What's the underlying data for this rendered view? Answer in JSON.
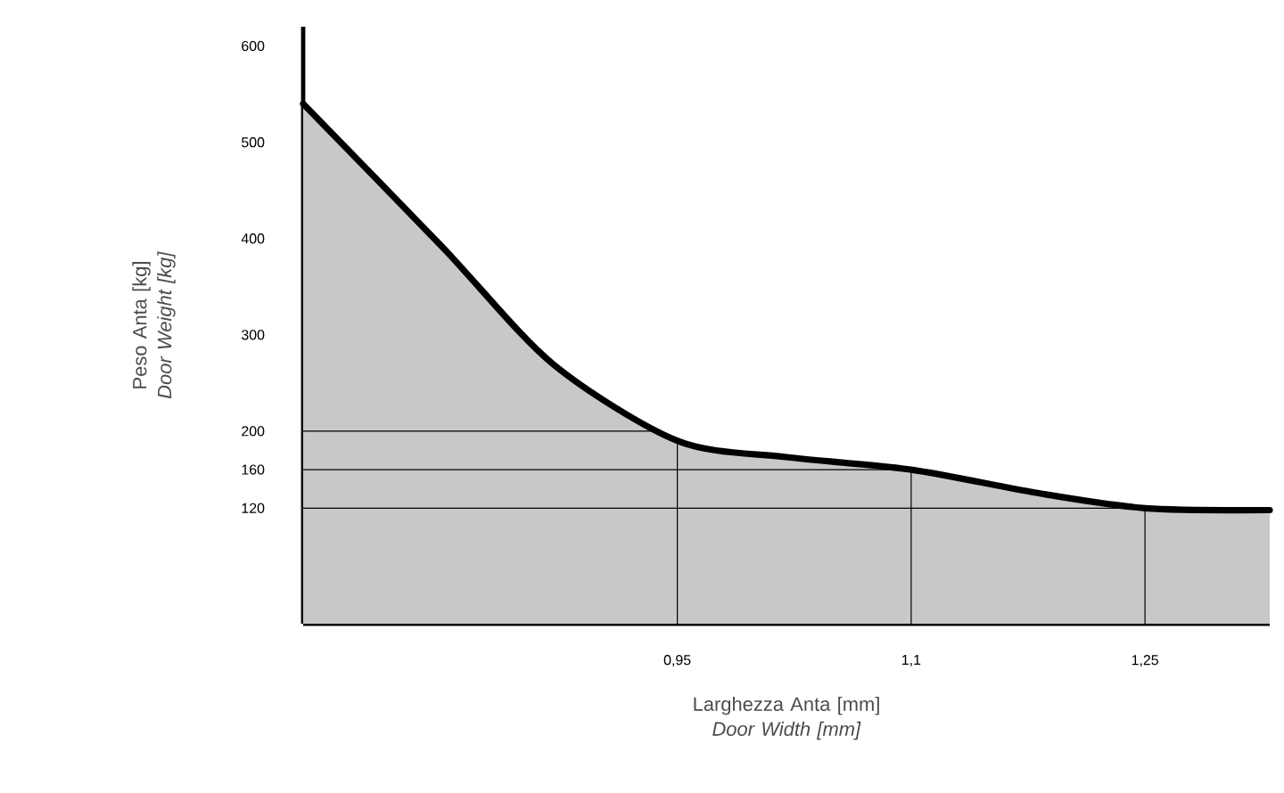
{
  "chart_data": {
    "type": "area",
    "xlabel": "Larghezza Anta [mm] *Door Width [mm]*",
    "ylabel": "Peso Anta [kg] *Door Weight [kg]*",
    "x": [
      0.71,
      0.8,
      0.87,
      0.95,
      1.02,
      1.1,
      1.18,
      1.25,
      1.33
    ],
    "series": [
      {
        "color": "#c8c8ca",
        "values": [
          540,
          390,
          270,
          190,
          173,
          160,
          136,
          120,
          118
        ]
      }
    ],
    "xlim": [
      0.71,
      1.33
    ],
    "ylim": [
      0,
      620
    ],
    "xticks": [
      {
        "value": 0.95,
        "label": "0,95"
      },
      {
        "value": 1.1,
        "label": "1,1"
      },
      {
        "value": 1.25,
        "label": "1,25"
      }
    ],
    "yticks": [
      120,
      160,
      200,
      300,
      400,
      500,
      600
    ],
    "ref_lines": [
      {
        "axis": "y",
        "value": 200
      },
      {
        "axis": "y",
        "value": 160
      },
      {
        "axis": "y",
        "value": 120
      },
      {
        "axis": "x",
        "value": 0.95
      },
      {
        "axis": "x",
        "value": 1.1
      },
      {
        "axis": "x",
        "value": 1.25
      }
    ],
    "grid": false
  }
}
